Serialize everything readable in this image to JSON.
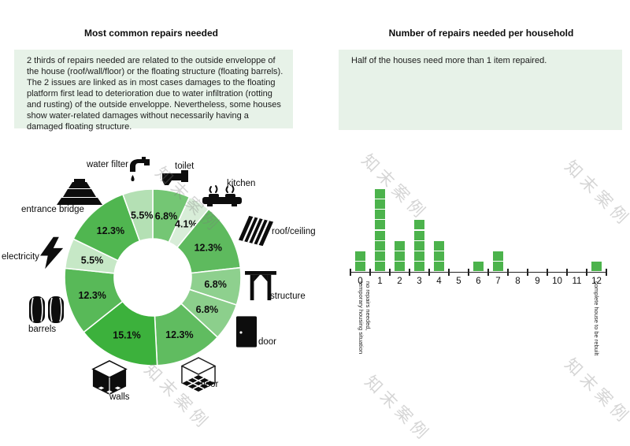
{
  "left_panel": {
    "title": "Most common repairs needed",
    "description": "2 thirds of repairs needed are related to the outside enveloppe of the house (roof/wall/floor) or the floating structure (floating barrels). The 2 issues are linked as in most cases damages to the floating platform first lead to deterioration due to water infiltration (rotting and rusting) of the outside enveloppe. Nevertheless, some houses show water-related damages without necessarily having a damaged floating structure."
  },
  "right_panel": {
    "title": "Number of repairs needed per household",
    "description": "Half of the houses need more than 1 item repaired."
  },
  "chart_data": [
    {
      "type": "pie",
      "subtype": "donut",
      "title": "Most common repairs needed",
      "direction": "clockwise",
      "start_angle_deg": 0,
      "slices": [
        {
          "label": "toilet",
          "value": 6.8,
          "display": "6.8%",
          "color": "#74c674",
          "icon": "toilet-icon"
        },
        {
          "label": "kitchen",
          "value": 4.1,
          "display": "4.1%",
          "color": "#d8edd8",
          "icon": "stove-icon"
        },
        {
          "label": "roof/ceiling",
          "value": 12.3,
          "display": "12.3%",
          "color": "#5eba5e",
          "icon": "roof-icon"
        },
        {
          "label": "structure",
          "value": 6.8,
          "display": "6.8%",
          "color": "#8ed08e",
          "icon": "structure-icon"
        },
        {
          "label": "door",
          "value": 6.8,
          "display": "6.8%",
          "color": "#8ccf8c",
          "icon": "door-icon"
        },
        {
          "label": "floor",
          "value": 12.3,
          "display": "12.3%",
          "color": "#60bc60",
          "icon": "floor-icon"
        },
        {
          "label": "walls",
          "value": 15.1,
          "display": "15.1%",
          "color": "#3cb13c",
          "icon": "walls-icon"
        },
        {
          "label": "barrels",
          "value": 12.3,
          "display": "12.3%",
          "color": "#58b958",
          "icon": "barrels-icon"
        },
        {
          "label": "electricity",
          "value": 5.5,
          "display": "5.5%",
          "color": "#c6e8c6",
          "icon": "electricity-icon"
        },
        {
          "label": "entrance bridge",
          "value": 12.3,
          "display": "12.3%",
          "color": "#50b650",
          "icon": "bridge-icon"
        },
        {
          "label": "water filter",
          "value": 5.5,
          "display": "5.5%",
          "color": "#b4e0b4",
          "icon": "faucet-icon"
        }
      ]
    },
    {
      "type": "bar",
      "title": "Number of repairs needed per household",
      "categories": [
        "0",
        "1",
        "2",
        "3",
        "4",
        "5",
        "6",
        "7",
        "8",
        "9",
        "10",
        "11",
        "12"
      ],
      "values": [
        2,
        8,
        3,
        5,
        3,
        0,
        1,
        2,
        0,
        0,
        0,
        0,
        1
      ],
      "bar_color": "#4cb34c",
      "annotations": {
        "zero_line1": "no repairs needed,",
        "zero_line2": "temporary housing situation",
        "twelve": "complete house to be rebuilt"
      }
    }
  ],
  "watermark": {
    "text": "知末案例"
  }
}
